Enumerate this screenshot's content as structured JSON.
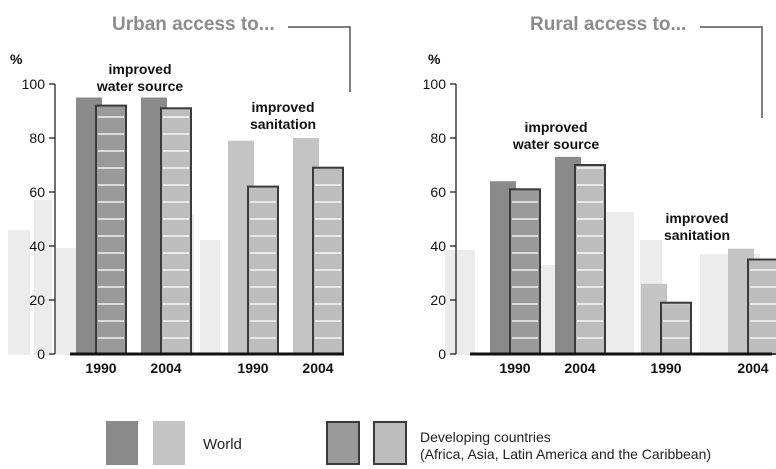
{
  "chart_data": [
    {
      "type": "bar",
      "title": "Urban access to...",
      "ylabel": "%",
      "ylim": [
        0,
        100
      ],
      "yticks": [
        0,
        20,
        40,
        60,
        80,
        100
      ],
      "grid": false,
      "categories": [
        "1990",
        "2004",
        "1990",
        "2004"
      ],
      "groups": [
        {
          "label": "improved water source",
          "categories": [
            "1990",
            "2004"
          ]
        },
        {
          "label": "improved sanitation",
          "categories": [
            "1990",
            "2004"
          ]
        }
      ],
      "series": [
        {
          "name": "World",
          "values": [
            95,
            95,
            79,
            80
          ]
        },
        {
          "name": "Developing countries (Africa, Asia, Latin America and the Caribbean)",
          "values": [
            92,
            91,
            62,
            69
          ]
        }
      ]
    },
    {
      "type": "bar",
      "title": "Rural access to...",
      "ylabel": "%",
      "ylim": [
        0,
        100
      ],
      "yticks": [
        0,
        20,
        40,
        60,
        80,
        100
      ],
      "grid": false,
      "categories": [
        "1990",
        "2004",
        "1990",
        "2004"
      ],
      "groups": [
        {
          "label": "improved water source",
          "categories": [
            "1990",
            "2004"
          ]
        },
        {
          "label": "improved sanitation",
          "categories": [
            "1990",
            "2004"
          ]
        }
      ],
      "series": [
        {
          "name": "World",
          "values": [
            64,
            73,
            26,
            39
          ]
        },
        {
          "name": "Developing countries (Africa, Asia, Latin America and the Caribbean)",
          "values": [
            61,
            70,
            19,
            35
          ]
        }
      ]
    }
  ],
  "legend": {
    "world_label": "World",
    "developing_label_line1": "Developing countries",
    "developing_label_line2": "(Africa, Asia, Latin America and the Caribbean)"
  },
  "colors": {
    "world_dark": "#8a8a8a",
    "world_light": "#c4c4c4",
    "developing_dark": "#9a9a9a",
    "developing_light": "#bdbdbd",
    "outline": "#3a3a3a",
    "axis": "#222222",
    "title": "#8c8c8c",
    "background_art": "#ececec"
  }
}
